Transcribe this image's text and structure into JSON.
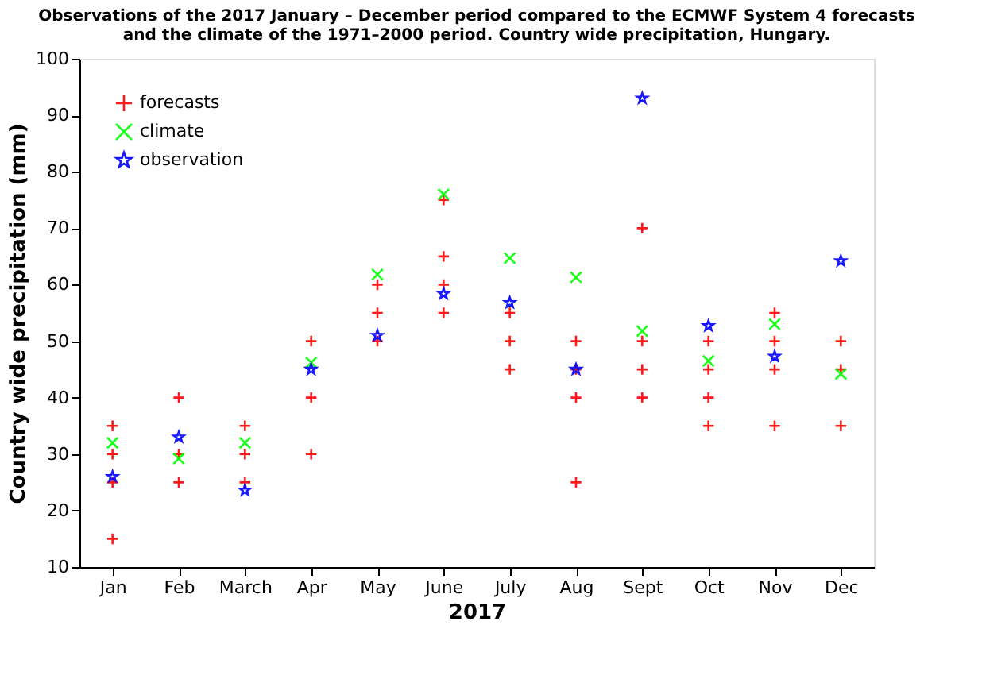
{
  "chart_data": {
    "type": "scatter",
    "title": [
      "Observations of the 2017 January – December period compared to the ECMWF System 4 forecasts",
      "and the climate of the 1971–2000 period. Country wide precipitation, Hungary."
    ],
    "xlabel": "2017",
    "ylabel": "Country wide precipitation (mm)",
    "categories": [
      "Jan",
      "Feb",
      "March",
      "Apr",
      "May",
      "June",
      "July",
      "Aug",
      "Sept",
      "Oct",
      "Nov",
      "Dec"
    ],
    "series": [
      {
        "name": "forecasts",
        "color": "#ff0000",
        "marker": "cross",
        "x": [
          "Jan",
          "Jan",
          "Jan",
          "Jan",
          "Feb",
          "Feb",
          "Feb",
          "March",
          "March",
          "March",
          "Apr",
          "Apr",
          "Apr",
          "May",
          "May",
          "May",
          "June",
          "June",
          "June",
          "June",
          "July",
          "July",
          "July",
          "Aug",
          "Aug",
          "Aug",
          "Aug",
          "Sept",
          "Sept",
          "Sept",
          "Sept",
          "Oct",
          "Oct",
          "Oct",
          "Oct",
          "Nov",
          "Nov",
          "Nov",
          "Nov",
          "Dec",
          "Dec",
          "Dec"
        ],
        "values": [
          35,
          30,
          25,
          15,
          40,
          30,
          25,
          35,
          30,
          25,
          50,
          40,
          30,
          60,
          55,
          50,
          75,
          65,
          60,
          55,
          55,
          50,
          45,
          50,
          45,
          40,
          25,
          70,
          50,
          45,
          40,
          50,
          45,
          40,
          35,
          55,
          50,
          45,
          35,
          50,
          45,
          35
        ]
      },
      {
        "name": "climate",
        "color": "#00ff00",
        "marker": "x",
        "values": [
          32,
          29.2,
          32,
          46.2,
          61.8,
          76,
          64.7,
          61.3,
          51.8,
          46.5,
          53,
          44.2
        ]
      },
      {
        "name": "observation",
        "color": "#0000ff",
        "marker": "star",
        "values": [
          26,
          33,
          23.6,
          45,
          51,
          58.4,
          56.8,
          45,
          93,
          52.7,
          47.3,
          64.2
        ]
      }
    ],
    "ylim": [
      10,
      100
    ],
    "yticks": [
      10,
      20,
      30,
      40,
      50,
      60,
      70,
      80,
      90,
      100
    ],
    "grid": false,
    "legend": "top left"
  }
}
